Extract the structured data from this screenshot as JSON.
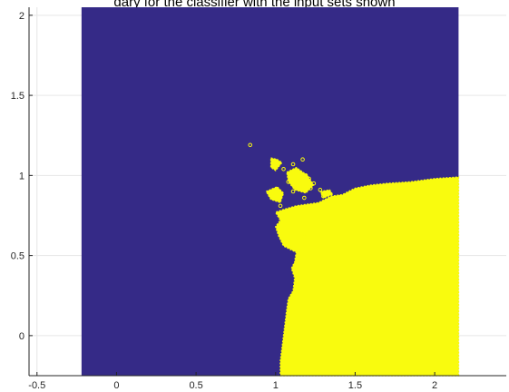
{
  "chart_data": {
    "type": "scatter",
    "title": "dary for the classifier with the input sets shown",
    "xlabel": "",
    "ylabel": "",
    "xlim": [
      -0.55,
      2.45
    ],
    "ylim": [
      -0.25,
      2.05
    ],
    "xticks": [
      -0.5,
      0,
      0.5,
      1,
      1.5,
      2
    ],
    "xtick_labels": [
      "-0.5",
      "0",
      "0.5",
      "1",
      "1.5",
      "2"
    ],
    "yticks": [
      0,
      0.5,
      1,
      1.5,
      2
    ],
    "ytick_labels": [
      "0",
      "0.5",
      "1",
      "1.5",
      "2"
    ],
    "grid": true,
    "background_color": "#ffffff",
    "classes": [
      {
        "color": "#352a87"
      },
      {
        "color": "#f9fb0e"
      }
    ],
    "region_bounds": {
      "x": [
        -0.22,
        2.15
      ],
      "y": [
        -0.25,
        2.05
      ]
    },
    "main_boundary": [
      [
        2.15,
        0.99
      ],
      [
        2.0,
        0.98
      ],
      [
        1.85,
        0.96
      ],
      [
        1.7,
        0.95
      ],
      [
        1.6,
        0.94
      ],
      [
        1.5,
        0.92
      ],
      [
        1.42,
        0.88
      ],
      [
        1.35,
        0.87
      ],
      [
        1.27,
        0.83
      ],
      [
        1.2,
        0.82
      ],
      [
        1.13,
        0.81
      ],
      [
        1.06,
        0.79
      ],
      [
        1.0,
        0.77
      ],
      [
        1.03,
        0.72
      ],
      [
        1.0,
        0.68
      ],
      [
        1.02,
        0.62
      ],
      [
        1.05,
        0.56
      ],
      [
        1.13,
        0.52
      ],
      [
        1.12,
        0.46
      ],
      [
        1.1,
        0.42
      ],
      [
        1.12,
        0.36
      ],
      [
        1.11,
        0.28
      ],
      [
        1.08,
        0.23
      ],
      [
        1.07,
        0.16
      ],
      [
        1.06,
        0.08
      ],
      [
        1.05,
        0.0
      ],
      [
        1.04,
        -0.08
      ],
      [
        1.03,
        -0.16
      ],
      [
        1.03,
        -0.25
      ]
    ],
    "islands": [
      [
        [
          0.97,
          1.11
        ],
        [
          1.01,
          1.1
        ],
        [
          1.04,
          1.08
        ],
        [
          1.0,
          1.03
        ],
        [
          0.97,
          1.05
        ]
      ],
      [
        [
          1.07,
          1.02
        ],
        [
          1.13,
          1.05
        ],
        [
          1.2,
          1.0
        ],
        [
          1.24,
          0.94
        ],
        [
          1.19,
          0.89
        ],
        [
          1.12,
          0.91
        ],
        [
          1.08,
          0.96
        ]
      ],
      [
        [
          0.94,
          0.9
        ],
        [
          1.01,
          0.93
        ],
        [
          1.05,
          0.89
        ],
        [
          1.03,
          0.83
        ],
        [
          0.97,
          0.85
        ]
      ],
      [
        [
          1.28,
          0.9
        ],
        [
          1.34,
          0.91
        ],
        [
          1.36,
          0.88
        ],
        [
          1.3,
          0.86
        ]
      ]
    ],
    "points": [
      {
        "x": 0.84,
        "y": 1.19
      },
      {
        "x": 1.0,
        "y": 1.09
      },
      {
        "x": 1.0,
        "y": 1.05
      },
      {
        "x": 1.05,
        "y": 1.04
      },
      {
        "x": 1.11,
        "y": 1.07
      },
      {
        "x": 1.17,
        "y": 1.1
      },
      {
        "x": 1.1,
        "y": 1.01
      },
      {
        "x": 1.19,
        "y": 1.0
      },
      {
        "x": 1.21,
        "y": 0.98
      },
      {
        "x": 1.24,
        "y": 0.95
      },
      {
        "x": 1.08,
        "y": 0.96
      },
      {
        "x": 1.12,
        "y": 0.96
      },
      {
        "x": 1.15,
        "y": 0.97
      },
      {
        "x": 1.17,
        "y": 0.93
      },
      {
        "x": 1.22,
        "y": 0.92
      },
      {
        "x": 1.28,
        "y": 0.91
      },
      {
        "x": 1.03,
        "y": 0.88
      },
      {
        "x": 1.11,
        "y": 0.9
      },
      {
        "x": 1.18,
        "y": 0.86
      },
      {
        "x": 1.3,
        "y": 0.87
      },
      {
        "x": 1.03,
        "y": 0.81
      },
      {
        "x": 1.18,
        "y": 0.62
      }
    ]
  }
}
